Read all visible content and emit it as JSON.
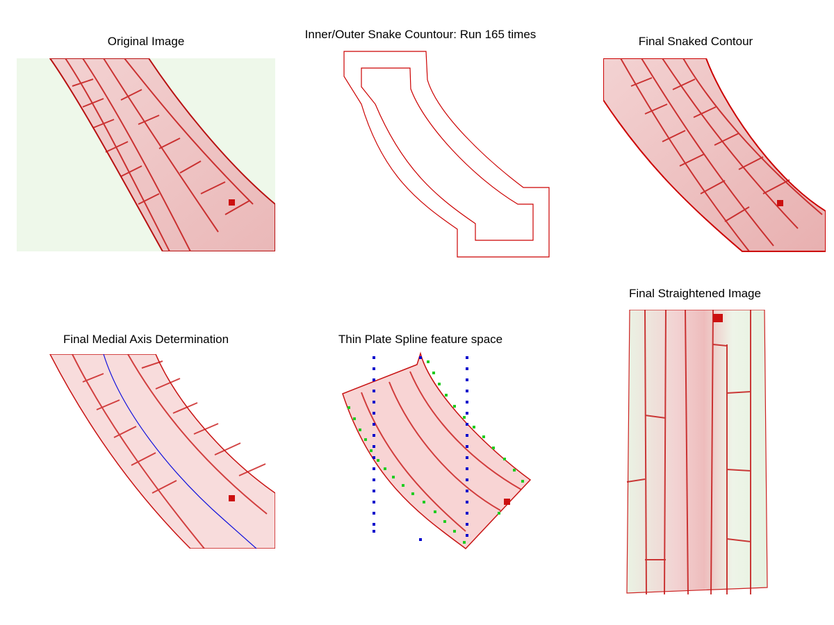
{
  "panels": {
    "original": {
      "title": "Original Image"
    },
    "snake": {
      "title": "Inner/Outer Snake Countour: Run 165 times"
    },
    "final_contour": {
      "title": "Final Snaked Contour"
    },
    "medial": {
      "title": "Final Medial Axis Determination"
    },
    "tps": {
      "title": "Thin Plate Spline feature space"
    },
    "straightened": {
      "title": "Final Straightened Image"
    }
  },
  "colors": {
    "cell_wall": "#c81414",
    "cell_fill": "#f6dede",
    "green_bg": "#eef8ea",
    "contour": "#cc0000",
    "axis": "#1010dd",
    "marker_blue": "#0000cc",
    "marker_green": "#22cc22"
  }
}
